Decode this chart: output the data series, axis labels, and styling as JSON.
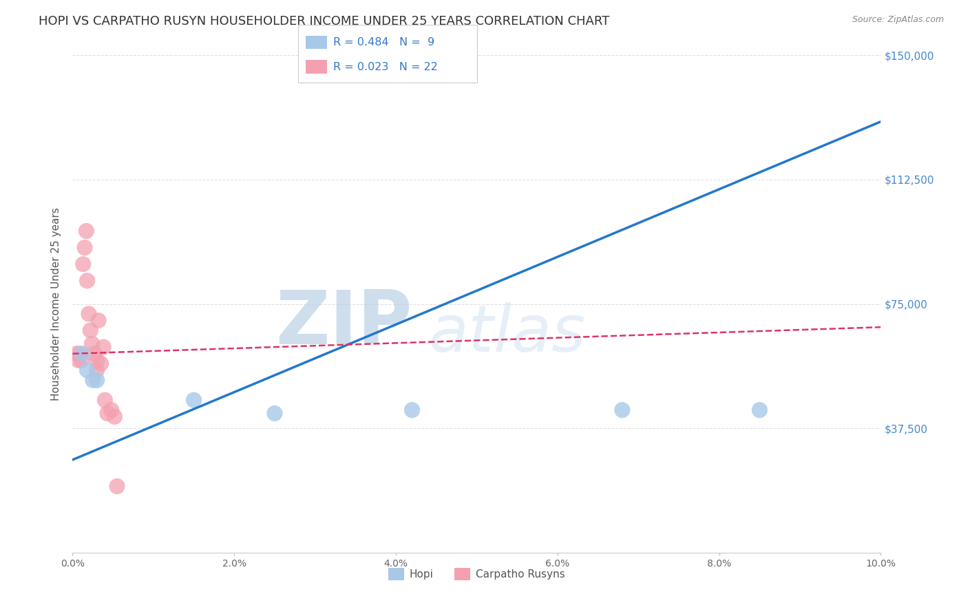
{
  "title": "HOPI VS CARPATHO RUSYN HOUSEHOLDER INCOME UNDER 25 YEARS CORRELATION CHART",
  "source": "Source: ZipAtlas.com",
  "ylabel": "Householder Income Under 25 years",
  "xlim": [
    0.0,
    10.0
  ],
  "ylim": [
    0,
    150000
  ],
  "yticks": [
    0,
    37500,
    75000,
    112500,
    150000
  ],
  "ytick_labels": [
    "",
    "$37,500",
    "$75,000",
    "$112,500",
    "$150,000"
  ],
  "xtick_labels": [
    "0.0%",
    "2.0%",
    "4.0%",
    "6.0%",
    "8.0%",
    "10.0%"
  ],
  "hopi_x": [
    0.12,
    0.18,
    0.25,
    0.3,
    1.5,
    2.5,
    4.2,
    6.8,
    8.5
  ],
  "hopi_y": [
    60000,
    55000,
    52000,
    52000,
    46000,
    42000,
    43000,
    43000,
    43000
  ],
  "carpatho_x": [
    0.05,
    0.07,
    0.09,
    0.11,
    0.13,
    0.15,
    0.17,
    0.18,
    0.2,
    0.22,
    0.24,
    0.27,
    0.3,
    0.32,
    0.35,
    0.38,
    0.4,
    0.43,
    0.48,
    0.52,
    0.55,
    0.3
  ],
  "carpatho_y": [
    60000,
    58000,
    60000,
    58000,
    87000,
    92000,
    97000,
    82000,
    72000,
    67000,
    63000,
    60000,
    58000,
    70000,
    57000,
    62000,
    46000,
    42000,
    43000,
    41000,
    20000,
    55000
  ],
  "hopi_color": "#a8c8e8",
  "carpatho_color": "#f4a0b0",
  "hopi_line_color": "#2277cc",
  "carpatho_line_color": "#dd3366",
  "hopi_R": 0.484,
  "hopi_N": 9,
  "carpatho_R": 0.023,
  "carpatho_N": 22,
  "legend_label_hopi": "Hopi",
  "legend_label_carpatho": "Carpatho Rusyns",
  "watermark_zip": "ZIP",
  "watermark_atlas": "atlas",
  "background_color": "#ffffff",
  "grid_color": "#dddddd",
  "title_fontsize": 13,
  "axis_label_fontsize": 11,
  "hopi_line_y0": 28000,
  "hopi_line_y1": 130000,
  "carpatho_line_y0": 60000,
  "carpatho_line_y1": 68000
}
